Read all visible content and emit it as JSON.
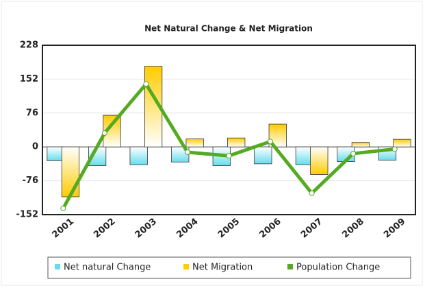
{
  "chart_data": {
    "type": "bar-line",
    "title": "Net Natural Change & Net Migration",
    "categories": [
      "2001",
      "2002",
      "2003",
      "2004",
      "2005",
      "2006",
      "2007",
      "2008",
      "2009"
    ],
    "series": [
      {
        "name": "Net natural Change",
        "color": "#66ddee",
        "kind": "bar",
        "values": [
          -31,
          -42,
          -40,
          -34,
          -42,
          -38,
          -40,
          -33,
          -30
        ]
      },
      {
        "name": "Net Migration",
        "color": "#ffcc00",
        "kind": "bar",
        "values": [
          -112,
          71,
          181,
          18,
          20,
          51,
          -62,
          10,
          17
        ]
      },
      {
        "name": "Population Change",
        "color": "#55aa22",
        "kind": "line",
        "values": [
          -138,
          31,
          141,
          -12,
          -20,
          12,
          -104,
          -15,
          -5
        ]
      }
    ],
    "ylim": [
      -152,
      228
    ],
    "yticks": [
      -152,
      -76,
      0,
      76,
      152,
      228
    ],
    "grid": true
  }
}
